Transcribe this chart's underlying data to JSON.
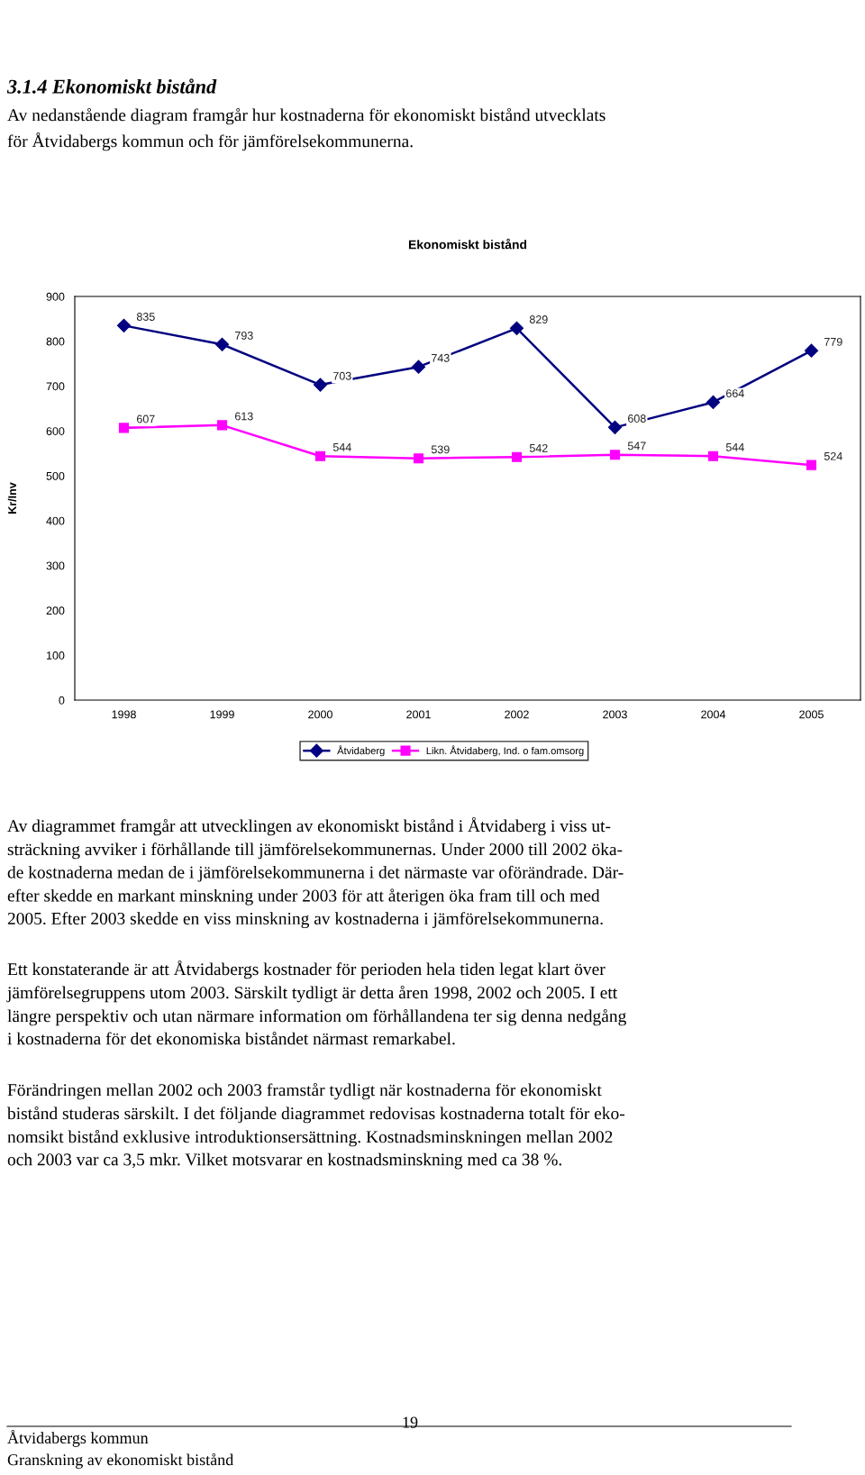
{
  "chart_data": {
    "type": "line",
    "title": "Ekonomiskt bistånd",
    "ylabel": "Kr/Inv",
    "categories": [
      "1998",
      "1999",
      "2000",
      "2001",
      "2002",
      "2003",
      "2004",
      "2005"
    ],
    "series": [
      {
        "name": "Åtvidaberg",
        "color": "#000080",
        "marker": "diamond",
        "values": [
          835,
          793,
          703,
          743,
          829,
          608,
          664,
          779
        ]
      },
      {
        "name": "Likn. Åtvidaberg, Ind. o fam.omsorg",
        "color": "#ff00ff",
        "marker": "square",
        "values": [
          607,
          613,
          544,
          539,
          542,
          547,
          544,
          524
        ]
      }
    ],
    "ylim": [
      0,
      900
    ],
    "yticks": [
      0,
      100,
      200,
      300,
      400,
      500,
      600,
      700,
      800,
      900
    ],
    "grid": false,
    "legend": "bottom",
    "data_labels": true,
    "line_style": "solid",
    "annotations": [
      "3.1.4 Ekonomiskt bistånd",
      "Av nedanstående diagram framgår hur kostnaderna för ekonomiskt bistånd utvecklats\nför Åtvidabergs kommun och för jämförelsekommunerna.",
      "Av diagrammet framgår att utvecklingen av ekonomiskt bistånd i Åtvidaberg i viss ut-\nsträckning avviker i förhållande till jämförelsekommunernas. Under 2000 till 2002 öka-\nde kostnaderna medan de i jämförelsekommunerna i det närmaste var oförändrade. Där-\nefter skedde en markant minskning under 2003 för att återigen öka fram till och med\n2005. Efter 2003 skedde en viss minskning av kostnaderna i jämförelsekommunerna.",
      "Ett konstaterande är att Åtvidabergs kostnader för perioden hela tiden legat klart över\njämförelsegruppens utom 2003. Särskilt tydligt är detta åren 1998, 2002 och 2005. I ett\nlängre perspektiv och utan närmare information om förhållandena ter sig denna nedgång\ni kostnaderna för det ekonomiska biståndet närmast remarkabel.",
      "Förändringen mellan 2002 och 2003 framstår tydligt när kostnaderna för ekonomiskt\nbistånd studeras särskilt. I det följande diagrammet redovisas kostnaderna totalt för eko-\nnomsikt bistånd exklusive introduktionsersättning. Kostnadsminskningen mellan 2002\noch 2003 var ca 3,5 mkr. Vilket motsvarar en kostnadsminskning med ca 38 %.",
      "Åtvidabergs kommun",
      "19",
      "Granskning av ekonomiskt bistånd"
    ]
  }
}
